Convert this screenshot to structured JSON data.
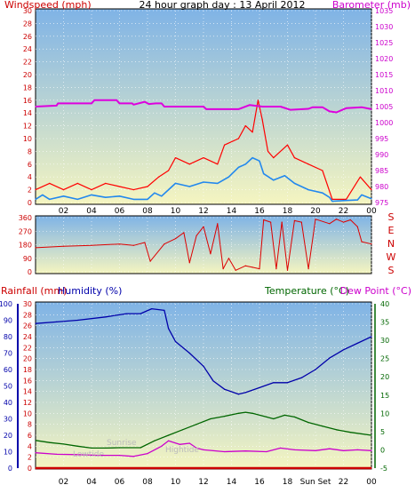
{
  "colors": {
    "wind": "#dd0000",
    "gust": "#ff0000",
    "avg_wind": "#2288ee",
    "barometer": "#dd00dd",
    "rain": "#cc0000",
    "humidity": "#0000aa",
    "temperature": "#006600",
    "dew_point": "#cc00cc",
    "bg_top": "#7fb3e6",
    "bg_bottom": "#f5f5c0"
  },
  "titles": {
    "main": "24 hour graph day : 13 April 2012",
    "windspeed": "Windspeed (mph)",
    "barometer": "Barometer (mb)",
    "rainfall": "Rainfall (mm)",
    "humidity": "Humidity (%)",
    "temperature": "Temperature (°C)",
    "dew_point": "Dew Point (°C)"
  },
  "annotations": {
    "lowtide": "Lowtide",
    "hightide": "Hightide",
    "sunrise": "Sunrise",
    "sunset": "Sun Set"
  },
  "chart_data": [
    {
      "type": "line",
      "name": "wind-baro",
      "x_ticks": [
        "02",
        "04",
        "06",
        "08",
        "10",
        "12",
        "14",
        "16",
        "18",
        "20",
        "22",
        "00"
      ],
      "x_range": [
        0,
        24
      ],
      "wind_axis": {
        "range": [
          0,
          30
        ],
        "ticks": [
          0,
          2,
          4,
          6,
          8,
          10,
          12,
          14,
          16,
          18,
          20,
          22,
          24,
          26,
          28,
          30
        ]
      },
      "baro_axis": {
        "range": [
          975,
          1035
        ],
        "ticks": [
          975,
          980,
          985,
          990,
          995,
          1000,
          1005,
          1010,
          1015,
          1020,
          1025,
          1030,
          1035
        ]
      },
      "barometer": [
        [
          0,
          1005
        ],
        [
          1.5,
          1005.3
        ],
        [
          1.6,
          1006
        ],
        [
          4,
          1006
        ],
        [
          4.2,
          1007
        ],
        [
          5.8,
          1007
        ],
        [
          6,
          1006
        ],
        [
          6.9,
          1006
        ],
        [
          7,
          1005.6
        ],
        [
          7.8,
          1006.5
        ],
        [
          8.1,
          1005.8
        ],
        [
          8.6,
          1006
        ],
        [
          9,
          1006
        ],
        [
          9.2,
          1005
        ],
        [
          12,
          1005
        ],
        [
          12.2,
          1004.2
        ],
        [
          14.5,
          1004.2
        ],
        [
          15.3,
          1005.5
        ],
        [
          16.2,
          1005
        ],
        [
          17.5,
          1005
        ],
        [
          18.2,
          1004
        ],
        [
          19.5,
          1004.3
        ],
        [
          19.8,
          1004.8
        ],
        [
          20.5,
          1004.8
        ],
        [
          21,
          1003.5
        ],
        [
          21.5,
          1003.2
        ],
        [
          22.2,
          1004.5
        ],
        [
          23.3,
          1004.8
        ],
        [
          24,
          1004.2
        ]
      ],
      "wind_avg": [
        [
          0,
          0.5
        ],
        [
          0.5,
          1.2
        ],
        [
          1,
          0.5
        ],
        [
          2,
          1
        ],
        [
          3,
          0.5
        ],
        [
          4,
          1.2
        ],
        [
          5,
          0.8
        ],
        [
          6,
          1
        ],
        [
          7,
          0.5
        ],
        [
          8,
          0.5
        ],
        [
          8.5,
          1.5
        ],
        [
          9,
          1
        ],
        [
          9.5,
          2
        ],
        [
          10,
          3
        ],
        [
          11,
          2.5
        ],
        [
          12,
          3.2
        ],
        [
          13,
          3
        ],
        [
          13.8,
          4
        ],
        [
          14.5,
          5.5
        ],
        [
          15,
          6
        ],
        [
          15.5,
          7
        ],
        [
          16,
          6.5
        ],
        [
          16.3,
          4.5
        ],
        [
          17,
          3.5
        ],
        [
          17.8,
          4.2
        ],
        [
          18.5,
          3
        ],
        [
          19.5,
          2
        ],
        [
          20.5,
          1.5
        ],
        [
          21,
          0.8
        ],
        [
          21.2,
          0.2
        ],
        [
          22,
          0.3
        ],
        [
          23,
          0.4
        ],
        [
          23.3,
          1.2
        ],
        [
          24,
          0.6
        ]
      ],
      "wind_gust": [
        [
          0,
          2
        ],
        [
          1,
          3
        ],
        [
          2,
          2
        ],
        [
          3,
          3
        ],
        [
          4,
          2
        ],
        [
          5,
          3
        ],
        [
          6,
          2.5
        ],
        [
          7,
          2
        ],
        [
          8,
          2.5
        ],
        [
          8.8,
          4
        ],
        [
          9.5,
          5
        ],
        [
          10,
          7
        ],
        [
          11,
          6
        ],
        [
          12,
          7
        ],
        [
          13,
          6
        ],
        [
          13.5,
          9
        ],
        [
          14.5,
          10
        ],
        [
          15,
          12
        ],
        [
          15.5,
          11
        ],
        [
          15.9,
          16
        ],
        [
          16.2,
          13
        ],
        [
          16.6,
          8
        ],
        [
          17,
          7
        ],
        [
          18,
          9
        ],
        [
          18.5,
          7
        ],
        [
          19.5,
          6
        ],
        [
          20.5,
          5
        ],
        [
          21.2,
          0.5
        ],
        [
          22.2,
          0.5
        ],
        [
          23.2,
          4
        ],
        [
          24,
          2
        ]
      ]
    },
    {
      "type": "line",
      "name": "wind-direction",
      "x_range": [
        0,
        24
      ],
      "y_axis": {
        "range": [
          0,
          360
        ],
        "ticks": [
          0,
          90,
          180,
          270,
          360
        ]
      },
      "direction_labels": [
        "S",
        "E",
        "N",
        "W",
        "S"
      ],
      "direction": [
        [
          0,
          160
        ],
        [
          2,
          170
        ],
        [
          4,
          175
        ],
        [
          6,
          185
        ],
        [
          7,
          175
        ],
        [
          7.8,
          195
        ],
        [
          8.2,
          70
        ],
        [
          9.2,
          185
        ],
        [
          10,
          220
        ],
        [
          10.6,
          260
        ],
        [
          11,
          60
        ],
        [
          11.5,
          240
        ],
        [
          12,
          300
        ],
        [
          12.5,
          120
        ],
        [
          13,
          320
        ],
        [
          13.4,
          20
        ],
        [
          13.8,
          90
        ],
        [
          14.3,
          10
        ],
        [
          15,
          40
        ],
        [
          15.5,
          30
        ],
        [
          16,
          20
        ],
        [
          16.3,
          345
        ],
        [
          16.8,
          330
        ],
        [
          17.2,
          20
        ],
        [
          17.6,
          330
        ],
        [
          18,
          10
        ],
        [
          18.5,
          340
        ],
        [
          19,
          330
        ],
        [
          19.5,
          20
        ],
        [
          20,
          350
        ],
        [
          21,
          320
        ],
        [
          21.5,
          350
        ],
        [
          22,
          330
        ],
        [
          22.5,
          345
        ],
        [
          23,
          300
        ],
        [
          23.3,
          200
        ],
        [
          24,
          185
        ]
      ]
    },
    {
      "type": "line",
      "name": "rain-humidity-temperature",
      "x_ticks": [
        "02",
        "04",
        "06",
        "08",
        "10",
        "12",
        "14",
        "16",
        "18",
        "Sun Set",
        "22",
        "00"
      ],
      "x_range": [
        0,
        24
      ],
      "humidity_axis": {
        "range": [
          0,
          100
        ],
        "ticks": [
          0,
          10,
          20,
          30,
          40,
          50,
          60,
          70,
          80,
          90,
          100
        ]
      },
      "rain_axis": {
        "range": [
          0,
          30
        ],
        "ticks": [
          0,
          2,
          4,
          6,
          8,
          10,
          12,
          14,
          16,
          18,
          20,
          22,
          24,
          26,
          28,
          30
        ]
      },
      "temp_axis": {
        "range": [
          -5,
          40
        ],
        "ticks": [
          -5,
          0,
          5,
          10,
          15,
          20,
          25,
          30,
          35,
          40
        ]
      },
      "humidity": [
        [
          0,
          88
        ],
        [
          1.5,
          89
        ],
        [
          3,
          90
        ],
        [
          5,
          92
        ],
        [
          6.5,
          94
        ],
        [
          7.5,
          94
        ],
        [
          8.3,
          97
        ],
        [
          9.2,
          96
        ],
        [
          9.5,
          85
        ],
        [
          10,
          77
        ],
        [
          11,
          70
        ],
        [
          12,
          62
        ],
        [
          12.7,
          53
        ],
        [
          13.5,
          48
        ],
        [
          14.5,
          45
        ],
        [
          15,
          46
        ],
        [
          16,
          49
        ],
        [
          17,
          52
        ],
        [
          18,
          52
        ],
        [
          19,
          55
        ],
        [
          20,
          60
        ],
        [
          21,
          67
        ],
        [
          22,
          72
        ],
        [
          23,
          76
        ],
        [
          24,
          80
        ]
      ],
      "temperature": [
        [
          0,
          2.6
        ],
        [
          1,
          2
        ],
        [
          2,
          1.6
        ],
        [
          3,
          1
        ],
        [
          4,
          0.5
        ],
        [
          5,
          0.5
        ],
        [
          6,
          0.6
        ],
        [
          7.5,
          0.6
        ],
        [
          8.5,
          2.5
        ],
        [
          9.5,
          4
        ],
        [
          10.5,
          5.5
        ],
        [
          11.5,
          7
        ],
        [
          12.5,
          8.5
        ],
        [
          13.5,
          9.2
        ],
        [
          14.5,
          10
        ],
        [
          15,
          10.3
        ],
        [
          15.5,
          10
        ],
        [
          16.5,
          9
        ],
        [
          17,
          8.5
        ],
        [
          17.8,
          9.5
        ],
        [
          18.5,
          9
        ],
        [
          19.5,
          7.5
        ],
        [
          20.5,
          6.5
        ],
        [
          21.5,
          5.5
        ],
        [
          22.5,
          4.8
        ],
        [
          24,
          4
        ]
      ],
      "dew_point": [
        [
          0,
          -0.8
        ],
        [
          1.5,
          -1.2
        ],
        [
          3,
          -1.3
        ],
        [
          4.5,
          -1.5
        ],
        [
          6,
          -1.5
        ],
        [
          7,
          -1.8
        ],
        [
          8,
          -1
        ],
        [
          9,
          1
        ],
        [
          9.5,
          2.5
        ],
        [
          10.3,
          1.5
        ],
        [
          11,
          1.8
        ],
        [
          11.5,
          0.5
        ],
        [
          12,
          0
        ],
        [
          13.5,
          -0.5
        ],
        [
          15,
          -0.3
        ],
        [
          16.5,
          -0.5
        ],
        [
          17.5,
          0.5
        ],
        [
          18.5,
          0
        ],
        [
          20,
          -0.2
        ],
        [
          21,
          0.3
        ],
        [
          22,
          -0.2
        ],
        [
          23,
          0
        ],
        [
          24,
          -0.2
        ]
      ],
      "rainfall": [
        [
          0,
          0
        ],
        [
          24,
          0
        ]
      ]
    }
  ]
}
